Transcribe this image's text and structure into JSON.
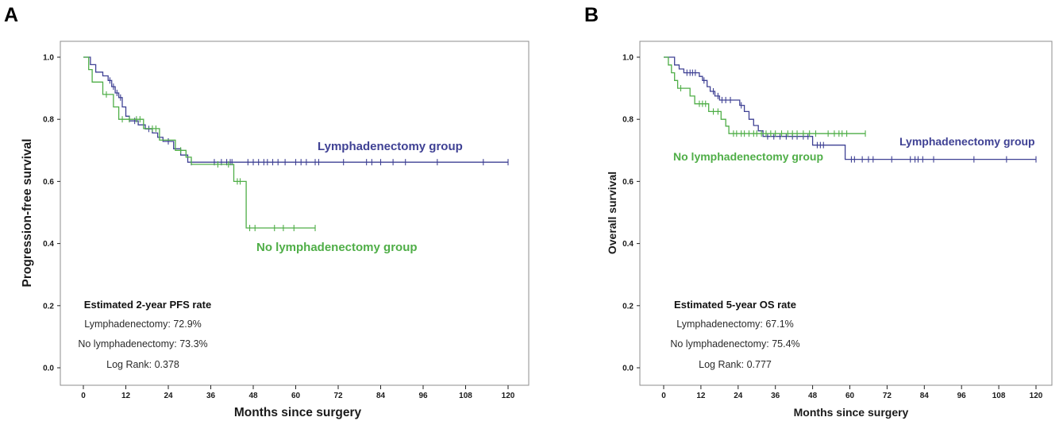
{
  "chart_data": [
    {
      "panel_label": "A",
      "type": "line",
      "xlabel": "Months since surgery",
      "ylabel": "Progression-free survival",
      "xlim": [
        0,
        120
      ],
      "ylim": [
        0,
        1.0
      ],
      "xticks": [
        0,
        12,
        24,
        36,
        48,
        60,
        72,
        84,
        96,
        108,
        120
      ],
      "yticks": [
        "0.0",
        "0.2",
        "0.4",
        "0.6",
        "0.8",
        "1.0"
      ],
      "series": [
        {
          "name": "Lymphadenectomy group",
          "color": "#3f4194",
          "end": 120,
          "steps": [
            [
              0,
              1.0
            ],
            [
              2.0,
              0.976
            ],
            [
              3.5,
              0.952
            ],
            [
              5.5,
              0.94
            ],
            [
              7.0,
              0.925
            ],
            [
              8.0,
              0.905
            ],
            [
              9.0,
              0.885
            ],
            [
              10.0,
              0.87
            ],
            [
              11.0,
              0.84
            ],
            [
              12.0,
              0.81
            ],
            [
              13.0,
              0.795
            ],
            [
              15.5,
              0.782
            ],
            [
              17.5,
              0.769
            ],
            [
              19.5,
              0.756
            ],
            [
              21.0,
              0.742
            ],
            [
              22.5,
              0.729
            ],
            [
              25.5,
              0.705
            ],
            [
              27.5,
              0.685
            ],
            [
              29.5,
              0.662
            ]
          ],
          "censored": [
            7.5,
            8.5,
            9.5,
            10.5,
            14.5,
            18.5,
            24.0,
            30.5,
            37.0,
            39.0,
            40.5,
            41.5,
            42.0,
            46.5,
            48.0,
            49.5,
            51.0,
            52.0,
            53.5,
            55.0,
            57.0,
            60.0,
            61.5,
            63.0,
            65.5,
            66.5,
            73.5,
            80.0,
            81.5,
            84.0,
            87.5,
            91.0,
            100.0,
            113.0,
            120.0
          ]
        },
        {
          "name": "No lymphadenectomy group",
          "color": "#4fae47",
          "end": 65.5,
          "steps": [
            [
              0,
              1.0
            ],
            [
              1.5,
              0.96
            ],
            [
              2.5,
              0.92
            ],
            [
              5.5,
              0.88
            ],
            [
              8.5,
              0.84
            ],
            [
              10.0,
              0.8
            ],
            [
              17.0,
              0.77
            ],
            [
              21.5,
              0.733
            ],
            [
              26.0,
              0.7
            ],
            [
              29.0,
              0.678
            ],
            [
              30.5,
              0.655
            ],
            [
              42.5,
              0.6
            ],
            [
              46.0,
              0.45
            ]
          ],
          "censored": [
            6.5,
            11.0,
            13.0,
            15.0,
            16.0,
            19.5,
            20.5,
            27.5,
            38.0,
            41.0,
            43.5,
            44.3,
            47.0,
            48.5,
            54.0,
            56.5,
            59.5,
            65.5
          ]
        }
      ],
      "annotation": {
        "title": "Estimated 2-year PFS rate",
        "lines": [
          "Lymphadenectomy: 72.9%",
          "No lymphadenectomy: 73.3%",
          "Log Rank: 0.378"
        ]
      }
    },
    {
      "panel_label": "B",
      "type": "line",
      "xlabel": "Months since surgery",
      "ylabel": "Overall survival",
      "xlim": [
        0,
        120
      ],
      "ylim": [
        0,
        1.0
      ],
      "xticks": [
        0,
        12,
        24,
        36,
        48,
        60,
        72,
        84,
        96,
        108,
        120
      ],
      "yticks": [
        "0.0",
        "0.2",
        "0.4",
        "0.6",
        "0.8",
        "1.0"
      ],
      "series": [
        {
          "name": "Lymphadenectomy group",
          "color": "#3f4194",
          "end": 120,
          "steps": [
            [
              0,
              1.0
            ],
            [
              3.5,
              0.975
            ],
            [
              5.0,
              0.962
            ],
            [
              6.5,
              0.95
            ],
            [
              11.5,
              0.938
            ],
            [
              12.5,
              0.925
            ],
            [
              14.0,
              0.905
            ],
            [
              15.0,
              0.89
            ],
            [
              16.5,
              0.875
            ],
            [
              18.0,
              0.862
            ],
            [
              24.5,
              0.845
            ],
            [
              26.0,
              0.825
            ],
            [
              27.5,
              0.8
            ],
            [
              29.0,
              0.78
            ],
            [
              30.5,
              0.763
            ],
            [
              32.0,
              0.745
            ],
            [
              48.0,
              0.717
            ],
            [
              58.5,
              0.671
            ]
          ],
          "censored": [
            7.5,
            8.5,
            9.3,
            10.2,
            13.0,
            16.0,
            17.5,
            18.8,
            20.0,
            21.5,
            25.0,
            33.5,
            35.5,
            37.5,
            39.5,
            41.5,
            43.0,
            45.0,
            46.5,
            49.5,
            50.5,
            51.5,
            60.5,
            61.5,
            64.0,
            66.0,
            67.5,
            73.5,
            79.5,
            81.0,
            82.0,
            83.5,
            87.0,
            100.0,
            110.5,
            120.0
          ]
        },
        {
          "name": "No lymphadenectomy group",
          "color": "#4fae47",
          "end": 65.0,
          "steps": [
            [
              0,
              1.0
            ],
            [
              1.5,
              0.975
            ],
            [
              2.5,
              0.95
            ],
            [
              3.5,
              0.925
            ],
            [
              4.5,
              0.9
            ],
            [
              8.5,
              0.875
            ],
            [
              10.0,
              0.85
            ],
            [
              14.5,
              0.825
            ],
            [
              18.5,
              0.8
            ],
            [
              20.0,
              0.778
            ],
            [
              21.0,
              0.754
            ]
          ],
          "censored": [
            5.5,
            11.5,
            12.5,
            13.5,
            16.0,
            17.5,
            22.5,
            23.5,
            25.0,
            26.0,
            27.5,
            29.0,
            30.0,
            31.5,
            33.0,
            34.5,
            36.0,
            38.0,
            40.0,
            41.5,
            43.0,
            45.0,
            47.0,
            49.0,
            53.0,
            55.0,
            56.5,
            57.5,
            59.0,
            65.0
          ]
        }
      ],
      "annotation": {
        "title": "Estimated 5-year OS rate",
        "lines": [
          "Lymphadenectomy: 67.1%",
          "No lymphadenectomy: 75.4%",
          "Log Rank: 0.777"
        ]
      }
    }
  ]
}
